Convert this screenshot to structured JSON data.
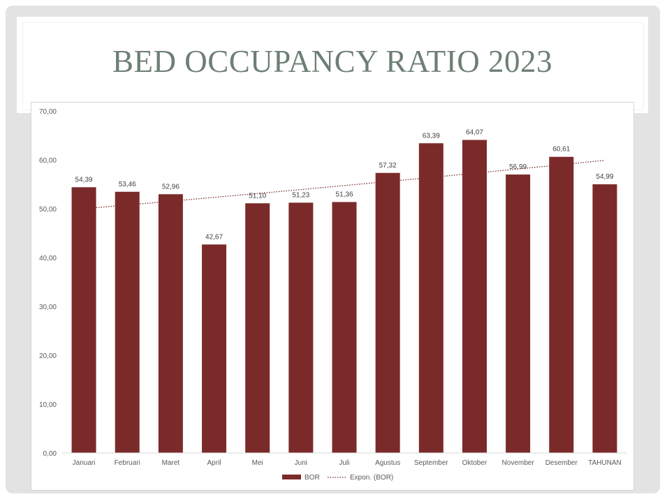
{
  "slide": {
    "title": "BED OCCUPANCY RATIO 2023"
  },
  "chart_data": {
    "type": "bar",
    "title": "",
    "xlabel": "",
    "ylabel": "",
    "categories": [
      "Januari",
      "Februari",
      "Maret",
      "April",
      "Mei",
      "Juni",
      "Juli",
      "Agustus",
      "September",
      "Oktober",
      "November",
      "Desember",
      "TAHUNAN"
    ],
    "series": [
      {
        "name": "BOR",
        "values": [
          54.39,
          53.46,
          52.96,
          42.67,
          51.1,
          51.23,
          51.36,
          57.32,
          63.39,
          64.07,
          56.99,
          60.61,
          54.99
        ],
        "data_labels": [
          "54,39",
          "53,46",
          "52,96",
          "42,67",
          "51,10",
          "51,23",
          "51,36",
          "57,32",
          "63,39",
          "64,07",
          "56,99",
          "60,61",
          "54,99"
        ],
        "color": "#7b2a2a"
      }
    ],
    "trendline": {
      "name": "Expon. (BOR)",
      "type": "exponential",
      "start_value": 50.0,
      "end_value": 59.9,
      "color": "#7b2a2a"
    },
    "ylim": [
      0,
      70
    ],
    "yticks": [
      0,
      10,
      20,
      30,
      40,
      50,
      60,
      70
    ],
    "ytick_labels": [
      "0,00",
      "10,00",
      "20,00",
      "30,00",
      "40,00",
      "50,00",
      "60,00",
      "70,00"
    ],
    "grid": false,
    "legend_position": "bottom",
    "legend": [
      "BOR",
      "Expon. (BOR)"
    ]
  }
}
